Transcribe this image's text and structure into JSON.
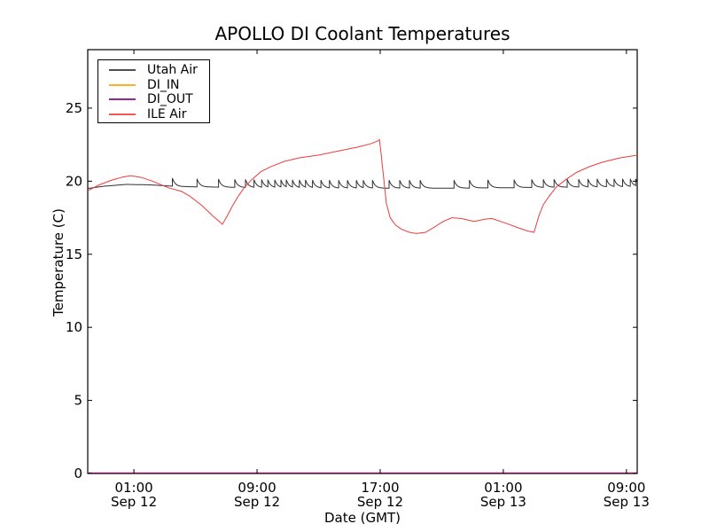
{
  "chart_data": {
    "type": "line",
    "title": "APOLLO DI Coolant Temperatures",
    "xlabel": "Date (GMT)",
    "ylabel": "Temperature (C)",
    "ylim": [
      0,
      29
    ],
    "xlim_hours": [
      0,
      35.7
    ],
    "grid": false,
    "legend_position": "upper-left",
    "yticks": [
      0,
      5,
      10,
      15,
      20,
      25
    ],
    "xticks": [
      {
        "t": 3,
        "line1": "01:00",
        "line2": "Sep 12"
      },
      {
        "t": 11,
        "line1": "09:00",
        "line2": "Sep 12"
      },
      {
        "t": 19,
        "line1": "17:00",
        "line2": "Sep 12"
      },
      {
        "t": 27,
        "line1": "01:00",
        "line2": "Sep 13"
      },
      {
        "t": 35,
        "line1": "09:00",
        "line2": "Sep 13"
      }
    ],
    "series": [
      {
        "name": "Utah Air",
        "color": "#303030",
        "kind": "baseline_with_spikes",
        "baseline_points": [
          [
            0,
            19.5
          ],
          [
            1,
            19.65
          ],
          [
            2.5,
            19.78
          ],
          [
            4,
            19.75
          ],
          [
            6,
            19.63
          ],
          [
            10,
            19.57
          ],
          [
            16,
            19.52
          ],
          [
            24,
            19.52
          ],
          [
            30,
            19.58
          ],
          [
            35.7,
            19.62
          ]
        ],
        "spike_amplitude": 0.55,
        "spike_decay_tau_hours": 0.18,
        "spike_times_hours": [
          5.5,
          7.1,
          8.5,
          9.55,
          10.25,
          10.8,
          11.3,
          11.7,
          12.15,
          12.55,
          12.9,
          13.3,
          13.75,
          14.15,
          14.6,
          15.15,
          15.7,
          16.3,
          16.87,
          17.45,
          17.9,
          18.5,
          19.58,
          20.27,
          20.9,
          21.6,
          23.8,
          24.8,
          26.0,
          27.7,
          28.85,
          29.6,
          30.3,
          31.15,
          31.9,
          32.5,
          33.1,
          33.7,
          34.2,
          34.75,
          35.25,
          35.6
        ]
      },
      {
        "name": "DI_IN",
        "color": "#ffa500",
        "kind": "points",
        "points": [
          [
            0,
            0
          ],
          [
            35.7,
            0
          ]
        ]
      },
      {
        "name": "DI_OUT",
        "color": "#800080",
        "kind": "points",
        "points": [
          [
            0,
            0
          ],
          [
            35.7,
            0
          ]
        ]
      },
      {
        "name": "ILE Air",
        "color": "#ee3b3b",
        "kind": "points",
        "points": [
          [
            0,
            19.35
          ],
          [
            0.75,
            19.75
          ],
          [
            1.5,
            20.05
          ],
          [
            2.25,
            20.28
          ],
          [
            2.8,
            20.38
          ],
          [
            3.5,
            20.25
          ],
          [
            4.2,
            20.0
          ],
          [
            5.25,
            19.55
          ],
          [
            6.1,
            19.3
          ],
          [
            6.6,
            19.0
          ],
          [
            7.4,
            18.35
          ],
          [
            8.1,
            17.65
          ],
          [
            8.75,
            17.05
          ],
          [
            9.05,
            17.6
          ],
          [
            9.4,
            18.3
          ],
          [
            9.8,
            19.0
          ],
          [
            10.2,
            19.6
          ],
          [
            10.65,
            20.1
          ],
          [
            11.25,
            20.65
          ],
          [
            11.9,
            21.0
          ],
          [
            12.75,
            21.35
          ],
          [
            13.75,
            21.6
          ],
          [
            15.05,
            21.8
          ],
          [
            16.45,
            22.1
          ],
          [
            17.6,
            22.35
          ],
          [
            18.35,
            22.55
          ],
          [
            18.85,
            22.75
          ],
          [
            18.95,
            22.85
          ],
          [
            19.05,
            22.0
          ],
          [
            19.25,
            20.0
          ],
          [
            19.4,
            18.5
          ],
          [
            19.65,
            17.5
          ],
          [
            20.0,
            17.0
          ],
          [
            20.4,
            16.7
          ],
          [
            20.9,
            16.5
          ],
          [
            21.35,
            16.42
          ],
          [
            21.95,
            16.5
          ],
          [
            22.5,
            16.85
          ],
          [
            23.1,
            17.25
          ],
          [
            23.65,
            17.5
          ],
          [
            24.25,
            17.45
          ],
          [
            25.1,
            17.25
          ],
          [
            25.8,
            17.4
          ],
          [
            26.25,
            17.45
          ],
          [
            27.1,
            17.15
          ],
          [
            28.0,
            16.8
          ],
          [
            28.55,
            16.6
          ],
          [
            29.0,
            16.5
          ],
          [
            29.3,
            17.6
          ],
          [
            29.6,
            18.4
          ],
          [
            30.0,
            19.0
          ],
          [
            30.45,
            19.6
          ],
          [
            31.05,
            20.1
          ],
          [
            31.75,
            20.6
          ],
          [
            32.6,
            21.0
          ],
          [
            33.45,
            21.3
          ],
          [
            34.6,
            21.6
          ],
          [
            35.7,
            21.78
          ]
        ]
      }
    ]
  }
}
